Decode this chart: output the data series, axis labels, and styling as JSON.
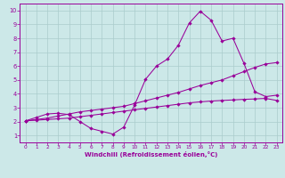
{
  "xlabel": "Windchill (Refroidissement éolien,°C)",
  "background_color": "#cce8e8",
  "grid_color": "#aacccc",
  "line_color": "#990099",
  "spine_color": "#660066",
  "x_ticks": [
    0,
    1,
    2,
    3,
    4,
    5,
    6,
    7,
    8,
    9,
    10,
    11,
    12,
    13,
    14,
    15,
    16,
    17,
    18,
    19,
    20,
    21,
    22,
    23
  ],
  "y_ticks": [
    1,
    2,
    3,
    4,
    5,
    6,
    7,
    8,
    9,
    10
  ],
  "ylim": [
    0.5,
    10.5
  ],
  "xlim": [
    -0.5,
    23.5
  ],
  "line1_x": [
    0,
    1,
    2,
    3,
    4,
    5,
    6,
    7,
    8,
    9,
    10,
    11,
    12,
    13,
    14,
    15,
    16,
    17,
    18,
    19,
    20,
    21,
    22,
    23
  ],
  "line1_y": [
    2.05,
    2.3,
    2.55,
    2.6,
    2.5,
    2.0,
    1.5,
    1.3,
    1.1,
    1.6,
    3.2,
    5.05,
    6.0,
    6.5,
    7.5,
    9.1,
    9.95,
    9.3,
    7.8,
    8.0,
    6.2,
    4.15,
    3.8,
    3.9
  ],
  "line2_x": [
    0,
    1,
    2,
    3,
    4,
    5,
    6,
    7,
    8,
    9,
    10,
    11,
    12,
    13,
    14,
    15,
    16,
    17,
    18,
    19,
    20,
    21,
    22,
    23
  ],
  "line2_y": [
    2.05,
    2.15,
    2.25,
    2.4,
    2.55,
    2.7,
    2.8,
    2.9,
    3.0,
    3.1,
    3.3,
    3.5,
    3.7,
    3.9,
    4.1,
    4.35,
    4.6,
    4.8,
    5.0,
    5.3,
    5.6,
    5.9,
    6.15,
    6.25
  ],
  "line3_x": [
    0,
    1,
    2,
    3,
    4,
    5,
    6,
    7,
    8,
    9,
    10,
    11,
    12,
    13,
    14,
    15,
    16,
    17,
    18,
    19,
    20,
    21,
    22,
    23
  ],
  "line3_y": [
    2.05,
    2.1,
    2.15,
    2.2,
    2.25,
    2.35,
    2.45,
    2.55,
    2.65,
    2.75,
    2.85,
    2.95,
    3.05,
    3.15,
    3.25,
    3.35,
    3.42,
    3.48,
    3.52,
    3.56,
    3.6,
    3.63,
    3.67,
    3.52
  ]
}
